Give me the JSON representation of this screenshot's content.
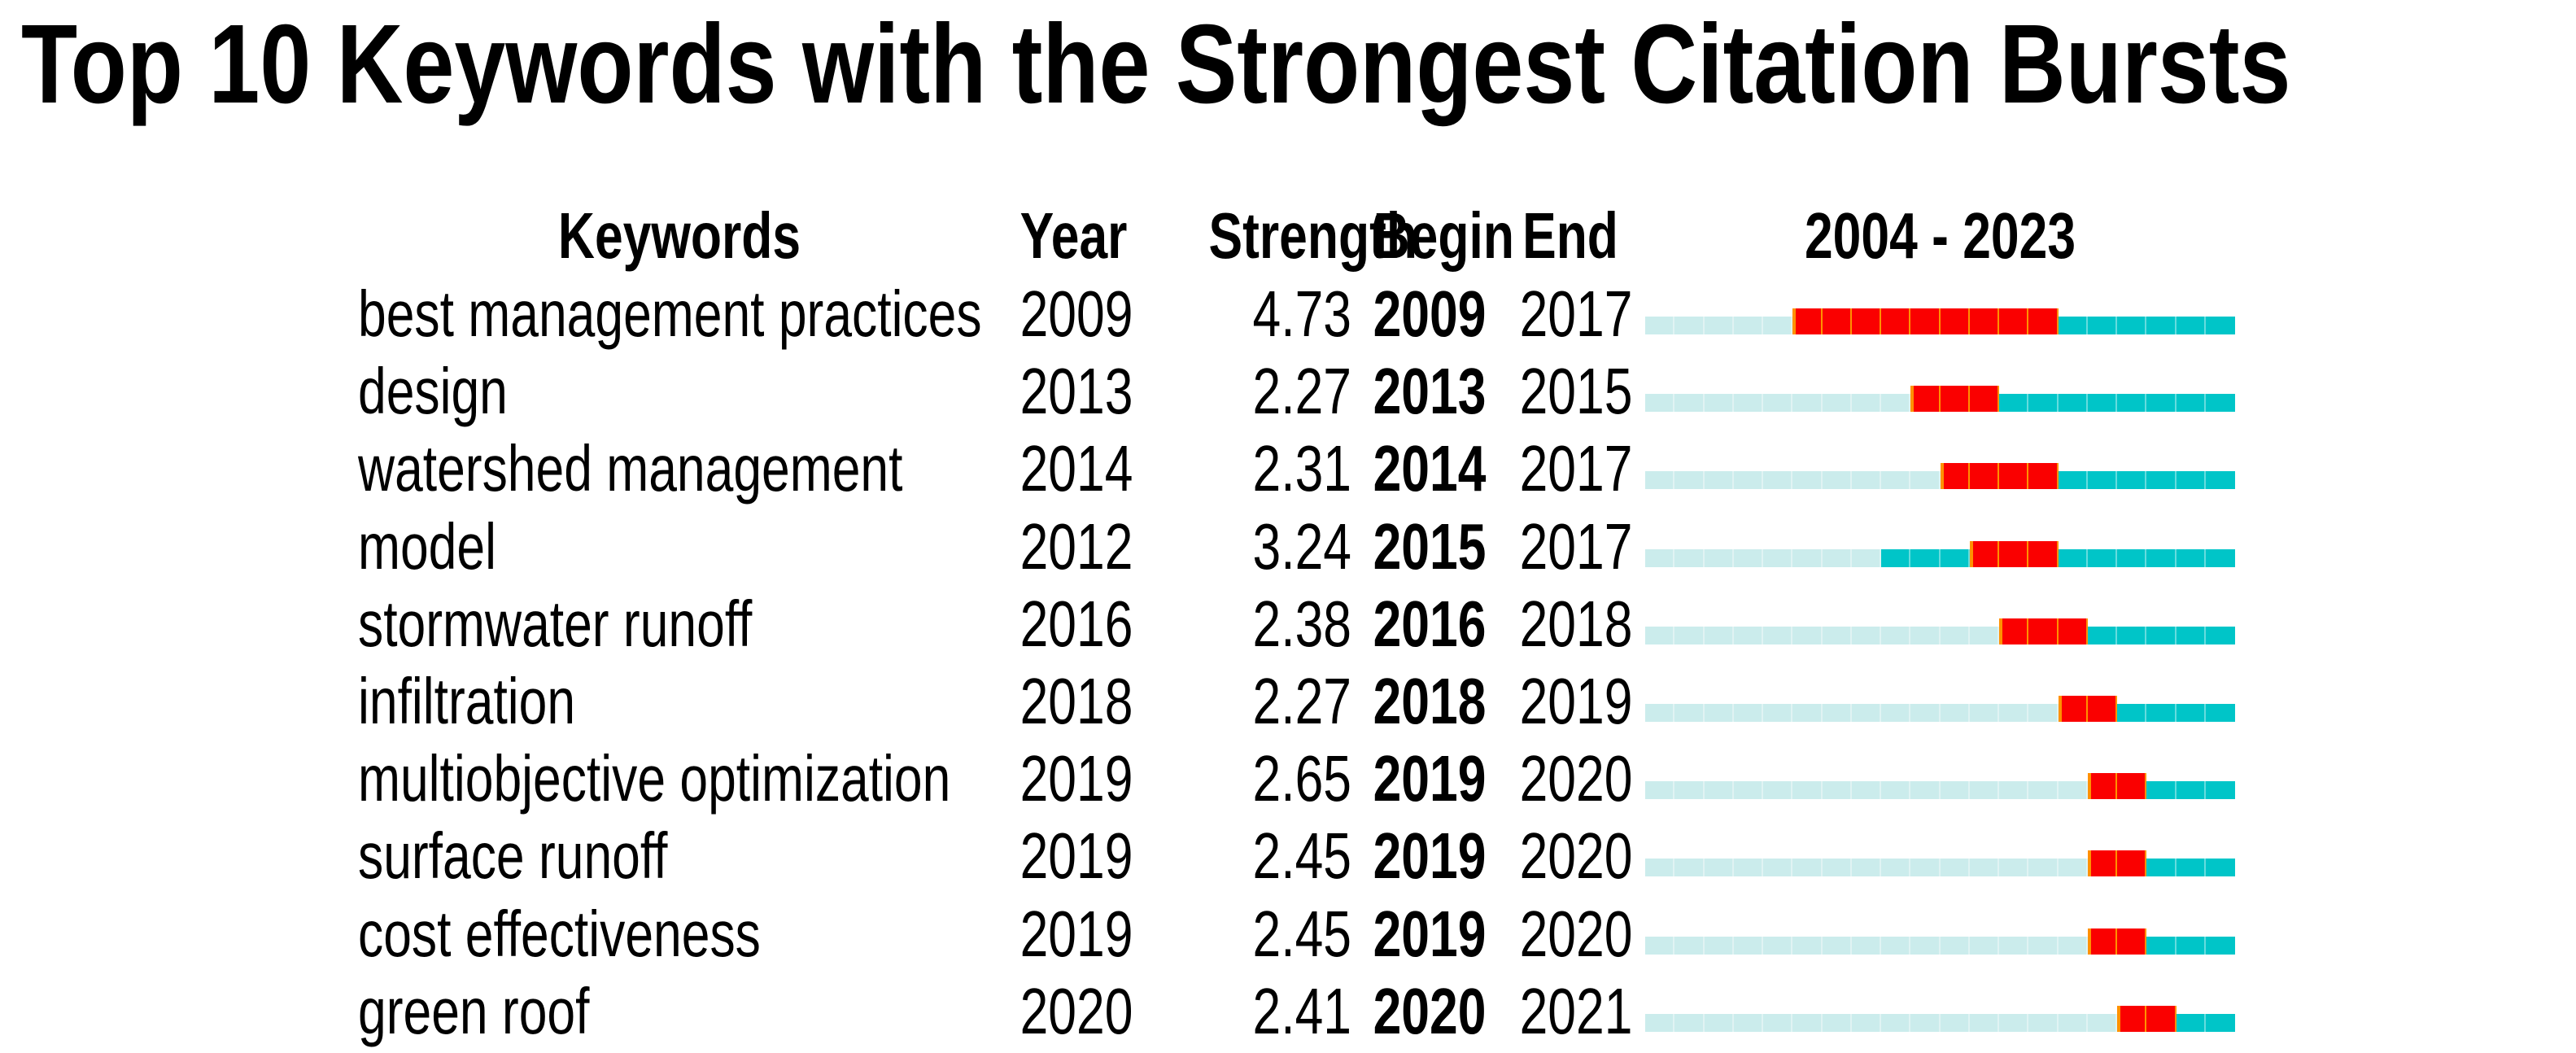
{
  "title": "Top 10 Keywords with the Strongest Citation Bursts",
  "header": {
    "keywords": "Keywords",
    "year": "Year",
    "strength": "Strength",
    "begin": "Begin",
    "end": "End",
    "timeline": "2004 - 2023"
  },
  "colors": {
    "pale": "#cbecec",
    "active": "#00c5c8",
    "burst": "#fa0000",
    "separator_orange": "#ff9100",
    "text": "#000000"
  },
  "chart_data": {
    "type": "table",
    "title": "Top 10 Keywords with the Strongest Citation Bursts",
    "columns": [
      "Keywords",
      "Year",
      "Strength",
      "Begin",
      "End"
    ],
    "timeline_label": "2004 - 2023",
    "year_range": [
      2004,
      2023
    ],
    "colors": {
      "pale": "#cbecec",
      "active": "#00c5c8",
      "burst": "#fa0000"
    },
    "rows": [
      {
        "keyword": "best management practices",
        "year": 2009,
        "strength": 4.73,
        "begin": 2009,
        "end": 2017
      },
      {
        "keyword": "design",
        "year": 2013,
        "strength": 2.27,
        "begin": 2013,
        "end": 2015
      },
      {
        "keyword": "watershed management",
        "year": 2014,
        "strength": 2.31,
        "begin": 2014,
        "end": 2017
      },
      {
        "keyword": "model",
        "year": 2012,
        "strength": 3.24,
        "begin": 2015,
        "end": 2017
      },
      {
        "keyword": "stormwater runoff",
        "year": 2016,
        "strength": 2.38,
        "begin": 2016,
        "end": 2018
      },
      {
        "keyword": "infiltration",
        "year": 2018,
        "strength": 2.27,
        "begin": 2018,
        "end": 2019
      },
      {
        "keyword": "multiobjective optimization",
        "year": 2019,
        "strength": 2.65,
        "begin": 2019,
        "end": 2020
      },
      {
        "keyword": "surface runoff",
        "year": 2019,
        "strength": 2.45,
        "begin": 2019,
        "end": 2020
      },
      {
        "keyword": "cost effectiveness",
        "year": 2019,
        "strength": 2.45,
        "begin": 2019,
        "end": 2020
      },
      {
        "keyword": "green roof",
        "year": 2020,
        "strength": 2.41,
        "begin": 2020,
        "end": 2021
      }
    ]
  }
}
